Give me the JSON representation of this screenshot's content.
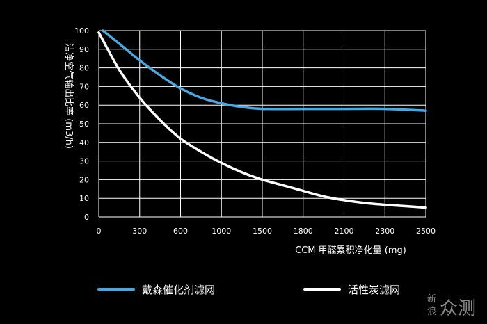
{
  "chart_data": {
    "type": "line",
    "xlabel": "CCM 甲醛累积净化量 (mg)",
    "ylabel": "洁净空气输出比率 (m3/h)",
    "ylim": [
      0,
      100
    ],
    "y_ticks": [
      0,
      10,
      20,
      30,
      40,
      50,
      60,
      70,
      80,
      90,
      100
    ],
    "x_tick_labels": [
      "0",
      "300",
      "600",
      "1000",
      "1500",
      "1800",
      "2100",
      "2300",
      "2500"
    ],
    "categories": [
      "0",
      "300",
      "600",
      "1000",
      "1500",
      "1800",
      "2100",
      "2300",
      "2500"
    ],
    "grid": true,
    "legend_position": "bottom",
    "series": [
      {
        "name": "戴森催化剂滤网",
        "color": "#4aa8e0",
        "points": [
          [
            0.1,
            100
          ],
          [
            0.5,
            93
          ],
          [
            1,
            84
          ],
          [
            1.5,
            76
          ],
          [
            2,
            69
          ],
          [
            2.5,
            64
          ],
          [
            3,
            61
          ],
          [
            3.5,
            59
          ],
          [
            4,
            58
          ],
          [
            5,
            58
          ],
          [
            6,
            58
          ],
          [
            7,
            58
          ],
          [
            8,
            57
          ]
        ]
      },
      {
        "name": "活性炭滤网",
        "color": "#ffffff",
        "points": [
          [
            0,
            99
          ],
          [
            0.5,
            79
          ],
          [
            1,
            64
          ],
          [
            1.5,
            52
          ],
          [
            2,
            42
          ],
          [
            2.5,
            35
          ],
          [
            3,
            29
          ],
          [
            3.5,
            24
          ],
          [
            4,
            20
          ],
          [
            4.5,
            17
          ],
          [
            5,
            14
          ],
          [
            5.5,
            11
          ],
          [
            6,
            9
          ],
          [
            6.5,
            7.5
          ],
          [
            7,
            6.5
          ],
          [
            7.5,
            5.8
          ],
          [
            8,
            5
          ]
        ]
      }
    ]
  },
  "watermark": {
    "line1": "新",
    "line2": "浪",
    "brand": "众测"
  }
}
